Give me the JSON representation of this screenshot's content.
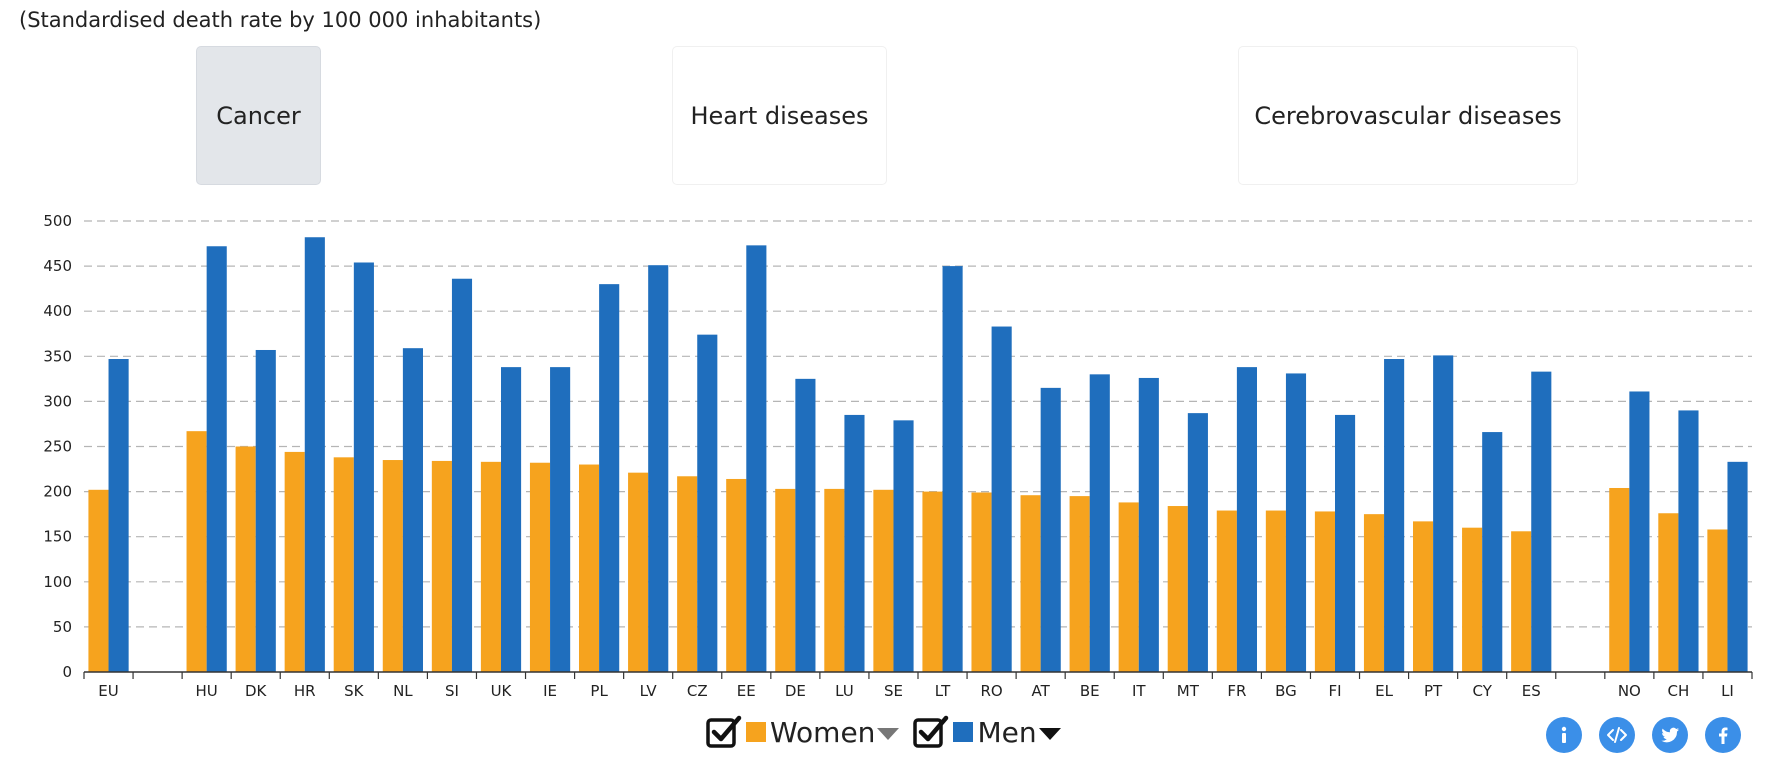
{
  "header": {
    "subtitle": "(Standardised death rate by 100 000 inhabitants)"
  },
  "tabs": [
    {
      "label": "Cancer",
      "active": true
    },
    {
      "label": "Heart diseases",
      "active": false
    },
    {
      "label": "Cerebrovascular diseases",
      "active": false
    }
  ],
  "legend": {
    "women_label": "Women",
    "men_label": "Men"
  },
  "share_icons": [
    "info-icon",
    "embed-icon",
    "twitter-icon",
    "facebook-icon"
  ],
  "colors": {
    "women": "#F6A31E",
    "men": "#1F6EBD",
    "grid": "#b5b5b5",
    "share": "#3b8fe8"
  },
  "chart_data": {
    "type": "bar",
    "title": "",
    "xlabel": "",
    "ylabel": "",
    "ylim": [
      0,
      500
    ],
    "yticks": [
      0,
      50,
      100,
      150,
      200,
      250,
      300,
      350,
      400,
      450,
      500
    ],
    "grid": true,
    "legend_position": "bottom",
    "categories": [
      "EU",
      "",
      "HU",
      "DK",
      "HR",
      "SK",
      "NL",
      "SI",
      "UK",
      "IE",
      "PL",
      "LV",
      "CZ",
      "EE",
      "DE",
      "LU",
      "SE",
      "LT",
      "RO",
      "AT",
      "BE",
      "IT",
      "MT",
      "FR",
      "BG",
      "FI",
      "EL",
      "PT",
      "CY",
      "ES",
      "",
      "NO",
      "CH",
      "LI"
    ],
    "series": [
      {
        "name": "Women",
        "color": "#F6A31E",
        "values": [
          202,
          null,
          267,
          250,
          244,
          238,
          235,
          234,
          233,
          232,
          230,
          221,
          217,
          214,
          203,
          203,
          202,
          200,
          199,
          196,
          195,
          188,
          184,
          179,
          179,
          178,
          175,
          167,
          160,
          156,
          null,
          204,
          176,
          158
        ]
      },
      {
        "name": "Men",
        "color": "#1F6EBD",
        "values": [
          347,
          null,
          472,
          357,
          482,
          454,
          359,
          436,
          338,
          338,
          430,
          451,
          374,
          473,
          325,
          285,
          279,
          450,
          383,
          315,
          330,
          326,
          287,
          338,
          331,
          285,
          347,
          351,
          266,
          333,
          null,
          311,
          290,
          233
        ]
      }
    ]
  }
}
